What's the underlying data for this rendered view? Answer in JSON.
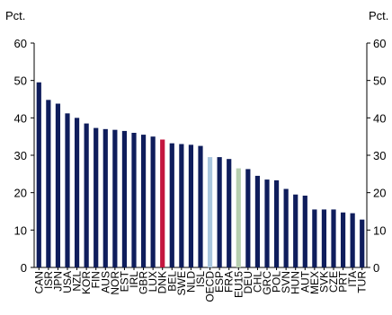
{
  "chart_data": {
    "type": "bar",
    "y_label": "Pct.",
    "y2_label": "Pct.",
    "categories": [
      "CAN",
      "ISR",
      "JPN",
      "USA",
      "NZL",
      "KOR",
      "FIN",
      "AUS",
      "NOR",
      "EST",
      "IRL",
      "GBR",
      "LUX",
      "DNK",
      "BEL",
      "SWE",
      "NLD",
      "ISL",
      "OECD",
      "ESP",
      "FRA",
      "EU15",
      "DEU",
      "CHL",
      "GRC",
      "POL",
      "SVN",
      "HUN",
      "AUT",
      "MEX",
      "SVK",
      "CZE",
      "PRT",
      "ITA",
      "TUR"
    ],
    "values": [
      49.5,
      44.8,
      43.8,
      41.2,
      40,
      38.5,
      37.3,
      37,
      36.8,
      36.5,
      36,
      35.5,
      35,
      34.2,
      33.2,
      33,
      32.8,
      32.5,
      29.5,
      29.5,
      29,
      26.5,
      26.3,
      24.5,
      23.5,
      23.3,
      21,
      19.5,
      19.2,
      15.5,
      15.5,
      15.5,
      14.7,
      14.5,
      12.8
    ],
    "colors": [
      "#0f1d5c",
      "#0f1d5c",
      "#0f1d5c",
      "#0f1d5c",
      "#0f1d5c",
      "#0f1d5c",
      "#0f1d5c",
      "#0f1d5c",
      "#0f1d5c",
      "#0f1d5c",
      "#0f1d5c",
      "#0f1d5c",
      "#0f1d5c",
      "#c4163f",
      "#0f1d5c",
      "#0f1d5c",
      "#0f1d5c",
      "#0f1d5c",
      "#a9c6de",
      "#0f1d5c",
      "#0f1d5c",
      "#b7cfb0",
      "#0f1d5c",
      "#0f1d5c",
      "#0f1d5c",
      "#0f1d5c",
      "#0f1d5c",
      "#0f1d5c",
      "#0f1d5c",
      "#0f1d5c",
      "#0f1d5c",
      "#0f1d5c",
      "#0f1d5c",
      "#0f1d5c",
      "#0f1d5c"
    ],
    "ylim": [
      0,
      60
    ],
    "yticks": [
      0,
      10,
      20,
      30,
      40,
      50,
      60
    ],
    "y2lim": [
      0,
      60
    ],
    "y2ticks": [
      0,
      10,
      20,
      30,
      40,
      50,
      60
    ]
  }
}
